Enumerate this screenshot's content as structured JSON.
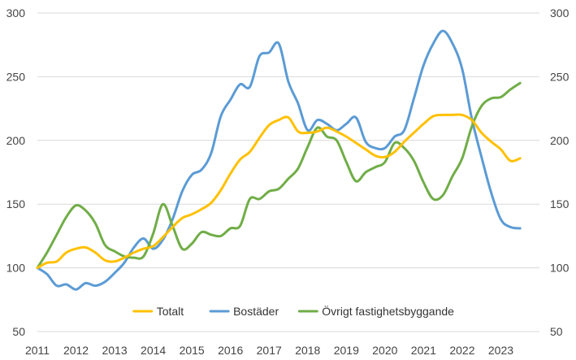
{
  "chart_data": {
    "type": "line",
    "title": "",
    "xlabel": "",
    "ylabel": "",
    "ylim": [
      50,
      300
    ],
    "yticks": [
      50,
      100,
      150,
      200,
      250,
      300
    ],
    "secondary_yticks": [
      50,
      100,
      150,
      200,
      250,
      300
    ],
    "xlim": [
      2011,
      2024
    ],
    "xticks": [
      "2011",
      "2012",
      "2013",
      "2014",
      "2015",
      "2016",
      "2017",
      "2018",
      "2019",
      "2020",
      "2021",
      "2022",
      "2023"
    ],
    "grid": true,
    "legend_position": "bottom",
    "series": [
      {
        "name": "Totalt",
        "color": "#ffc000",
        "x": [
          2011.0,
          2011.25,
          2011.5,
          2011.75,
          2012.0,
          2012.25,
          2012.5,
          2012.75,
          2013.0,
          2013.25,
          2013.5,
          2013.75,
          2014.0,
          2014.25,
          2014.5,
          2014.75,
          2015.0,
          2015.25,
          2015.5,
          2015.75,
          2016.0,
          2016.25,
          2016.5,
          2016.75,
          2017.0,
          2017.25,
          2017.5,
          2017.75,
          2018.0,
          2018.25,
          2018.5,
          2018.75,
          2019.0,
          2019.25,
          2019.5,
          2019.75,
          2020.0,
          2020.25,
          2020.5,
          2020.75,
          2021.0,
          2021.25,
          2021.5,
          2021.75,
          2022.0,
          2022.25,
          2022.5,
          2022.75,
          2023.0,
          2023.25,
          2023.5
        ],
        "y": [
          100,
          104,
          105,
          112,
          115,
          116,
          112,
          106,
          105,
          108,
          112,
          115,
          117,
          124,
          132,
          139,
          142,
          146,
          151,
          161,
          174,
          185,
          191,
          202,
          212,
          216,
          218,
          207,
          206,
          207,
          210,
          207,
          203,
          198,
          193,
          188,
          187,
          191,
          199,
          206,
          213,
          219,
          220,
          220,
          220,
          216,
          206,
          199,
          193,
          184,
          186
        ]
      },
      {
        "name": "Bostäder",
        "color": "#5b9bd5",
        "x": [
          2011.0,
          2011.25,
          2011.5,
          2011.75,
          2012.0,
          2012.25,
          2012.5,
          2012.75,
          2013.0,
          2013.25,
          2013.5,
          2013.75,
          2014.0,
          2014.25,
          2014.5,
          2014.75,
          2015.0,
          2015.25,
          2015.5,
          2015.75,
          2016.0,
          2016.25,
          2016.5,
          2016.75,
          2017.0,
          2017.25,
          2017.5,
          2017.75,
          2018.0,
          2018.25,
          2018.5,
          2018.75,
          2019.0,
          2019.25,
          2019.5,
          2019.75,
          2020.0,
          2020.25,
          2020.5,
          2020.75,
          2021.0,
          2021.25,
          2021.5,
          2021.75,
          2022.0,
          2022.25,
          2022.5,
          2022.75,
          2023.0,
          2023.25,
          2023.5
        ],
        "y": [
          100,
          95,
          86,
          87,
          83,
          88,
          86,
          89,
          96,
          104,
          116,
          123,
          115,
          122,
          138,
          160,
          173,
          177,
          190,
          219,
          232,
          244,
          242,
          266,
          269,
          276,
          246,
          229,
          208,
          216,
          213,
          208,
          213,
          218,
          199,
          194,
          194,
          203,
          208,
          233,
          259,
          276,
          286,
          276,
          256,
          217,
          187,
          159,
          138,
          132,
          131
        ]
      },
      {
        "name": "Övrigt fastighetsbyggande",
        "color": "#70ad47",
        "x": [
          2011.0,
          2011.25,
          2011.5,
          2011.75,
          2012.0,
          2012.25,
          2012.5,
          2012.75,
          2013.0,
          2013.25,
          2013.5,
          2013.75,
          2014.0,
          2014.25,
          2014.5,
          2014.75,
          2015.0,
          2015.25,
          2015.5,
          2015.75,
          2016.0,
          2016.25,
          2016.5,
          2016.75,
          2017.0,
          2017.25,
          2017.5,
          2017.75,
          2018.0,
          2018.25,
          2018.5,
          2018.75,
          2019.0,
          2019.25,
          2019.5,
          2019.75,
          2020.0,
          2020.25,
          2020.5,
          2020.75,
          2021.0,
          2021.25,
          2021.5,
          2021.75,
          2022.0,
          2022.25,
          2022.5,
          2022.75,
          2023.0,
          2023.25,
          2023.5
        ],
        "y": [
          100,
          112,
          126,
          140,
          149,
          145,
          135,
          118,
          113,
          109,
          108,
          109,
          127,
          150,
          133,
          115,
          119,
          128,
          126,
          125,
          131,
          133,
          154,
          154,
          160,
          162,
          170,
          178,
          195,
          210,
          203,
          200,
          183,
          168,
          175,
          179,
          183,
          198,
          194,
          184,
          167,
          154,
          157,
          172,
          186,
          211,
          227,
          233,
          234,
          240,
          245
        ]
      }
    ]
  }
}
